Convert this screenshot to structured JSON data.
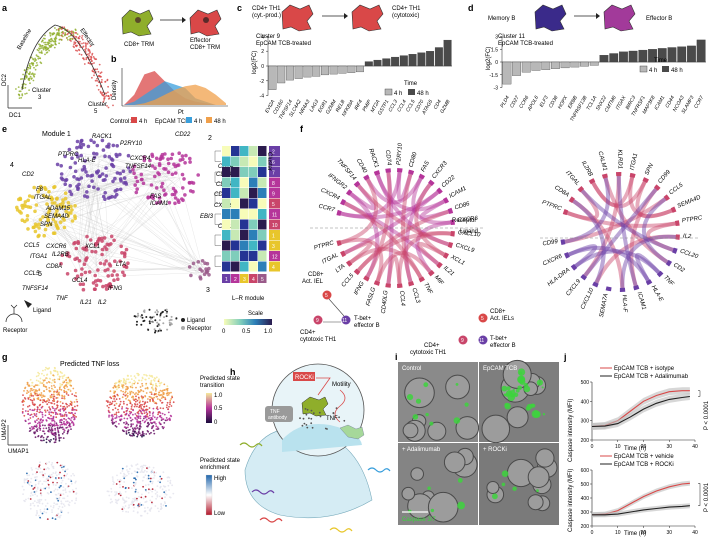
{
  "panel_labels": [
    "a",
    "b",
    "c",
    "d",
    "e",
    "f",
    "g",
    "h",
    "i",
    "j"
  ],
  "colors": {
    "green": "#8fae2b",
    "red": "#d94848",
    "blue": "#3a9fdc",
    "orange": "#f0a04b",
    "gray_light": "#b8b8b8",
    "gray_dark": "#4a4a4a",
    "purple": "#6a3fa6",
    "magenta": "#b5359a",
    "yellow": "#e8c62b",
    "pink": "#c9456a"
  },
  "panel_a": {
    "labels": {
      "baseline": "Baseline",
      "effector": "Effector",
      "cluster3": "Cluster\n3",
      "cluster5": "Cluster\n5",
      "dc1": "DC1",
      "dc2": "DC2"
    },
    "schema": {
      "from": "CD8+ TRM",
      "to": "Effector\nCD8+ TRM"
    }
  },
  "panel_b": {
    "ylabel": "Density",
    "xlabel": "Pt",
    "legend_control": "Control:",
    "legend_treated": "EpCAM TCB:",
    "legend": [
      {
        "label": "4 h",
        "color": "#d94848"
      },
      {
        "label": "4 h",
        "color": "#3a9fdc"
      },
      {
        "label": "48 h",
        "color": "#f0a04b"
      }
    ],
    "chart_data": {
      "type": "area",
      "xlabel": "Pt",
      "ylabel": "Density",
      "series": [
        {
          "name": "Control 4 h",
          "x": [
            0,
            0.1,
            0.2,
            0.3,
            0.4,
            0.5,
            0.6,
            0.7,
            0.8,
            0.9,
            1.0
          ],
          "values": [
            0,
            0.3,
            0.9,
            1.0,
            0.7,
            0.4,
            0.2,
            0.1,
            0.05,
            0,
            0
          ]
        },
        {
          "name": "EpCAM TCB 4 h",
          "x": [
            0,
            0.1,
            0.2,
            0.3,
            0.4,
            0.5,
            0.6,
            0.7,
            0.8,
            0.9,
            1.0
          ],
          "values": [
            0,
            0.1,
            0.3,
            0.5,
            0.7,
            0.6,
            0.5,
            0.2,
            0.1,
            0,
            0
          ]
        },
        {
          "name": "EpCAM TCB 48 h",
          "x": [
            0,
            0.1,
            0.2,
            0.3,
            0.4,
            0.5,
            0.6,
            0.7,
            0.8,
            0.9,
            1.0
          ],
          "values": [
            0,
            0,
            0.05,
            0.15,
            0.3,
            0.45,
            0.55,
            0.6,
            0.5,
            0.3,
            0.05
          ]
        }
      ]
    }
  },
  "panel_c": {
    "schema_from": "CD4+ TH1\n(cyt.-prod.)",
    "schema_to": "CD4+ TH1\n(cytotoxic)",
    "title": "Cluster 9\nEpCAM TCB-treated",
    "ylabel": "log2(FC)",
    "legend_title": "Time",
    "legend": [
      {
        "label": "4 h",
        "color": "#b8b8b8"
      },
      {
        "label": "48 h",
        "color": "#4a4a4a"
      }
    ],
    "chart_data": {
      "type": "bar",
      "title": "Cluster 9 EpCAM TCB-treated",
      "ylabel": "log2(FC)",
      "ylim": [
        -4,
        4
      ],
      "categories": [
        "EVI2A",
        "CD160",
        "TNFSF14",
        "SLC4A2",
        "NR4A3",
        "LAG3",
        "EGR1",
        "GZMM",
        "RELB",
        "NFKBIA",
        "IRF4",
        "PMIP",
        "MT2A",
        "GSTP1",
        "CCL3",
        "CCL4",
        "CCL5",
        "CD70",
        "ATAG5",
        "CD4",
        "GZMB"
      ],
      "values": [
        -3.2,
        -2.3,
        -1.9,
        -1.7,
        -1.5,
        -1.4,
        -1.2,
        -1.1,
        -1.0,
        -0.9,
        -0.8,
        0.6,
        0.8,
        1.0,
        1.2,
        1.4,
        1.6,
        1.8,
        2.0,
        2.5,
        3.5
      ],
      "series_time": [
        "4 h",
        "4 h",
        "4 h",
        "4 h",
        "4 h",
        "4 h",
        "4 h",
        "4 h",
        "4 h",
        "4 h",
        "4 h",
        "48 h",
        "48 h",
        "48 h",
        "48 h",
        "48 h",
        "48 h",
        "48 h",
        "48 h",
        "48 h",
        "48 h"
      ]
    }
  },
  "panel_d": {
    "schema_from": "Memory B",
    "schema_to": "Effector B",
    "title": "Cluster 11\nEpCAM TCB-treated",
    "ylabel": "log2(FC)",
    "legend_title": "Time",
    "legend": [
      {
        "label": "4 h",
        "color": "#b8b8b8"
      },
      {
        "label": "48 h",
        "color": "#4a4a4a"
      }
    ],
    "chart_data": {
      "type": "bar",
      "title": "Cluster 11 EpCAM TCB-treated",
      "ylabel": "log2(FC)",
      "ylim": [
        -3,
        3
      ],
      "categories": [
        "PLD4",
        "CD27",
        "CCR6",
        "APOL6",
        "ELF3",
        "CD38",
        "HOPX",
        "ERBB",
        "TNFRSF13B",
        "TCL1A",
        "SNX22",
        "CMTM6",
        "ITGAX",
        "BIRC3",
        "TNFRSF1",
        "MAP3K8",
        "ICAM1",
        "CD44",
        "NCOA3",
        "SLAMF3",
        "CCR7"
      ],
      "values": [
        -2.6,
        -1.6,
        -1.2,
        -1.0,
        -0.9,
        -0.8,
        -0.7,
        -0.6,
        -0.5,
        -0.4,
        0.8,
        1.0,
        1.2,
        1.3,
        1.4,
        1.5,
        1.6,
        1.7,
        1.8,
        1.9,
        2.6
      ],
      "series_time": [
        "4 h",
        "4 h",
        "4 h",
        "4 h",
        "4 h",
        "4 h",
        "4 h",
        "4 h",
        "4 h",
        "4 h",
        "48 h",
        "48 h",
        "48 h",
        "48 h",
        "48 h",
        "48 h",
        "48 h",
        "48 h",
        "48 h",
        "48 h",
        "48 h"
      ]
    }
  },
  "panel_e": {
    "module_label": "Module 1",
    "module_numbers": [
      "2",
      "3",
      "4",
      "5"
    ],
    "genes_top": [
      "RACK1",
      "P2RY10",
      "CD22",
      "CXCR4",
      "TNFSF14",
      "CD74",
      "CD40",
      "CD86",
      "CD80",
      "CXCL9",
      "EBI3",
      "CCL17",
      "ICAM1",
      "FAS",
      "CCL5"
    ],
    "genes_left": [
      "PTPRC",
      "HLA-E",
      "F8",
      "ITGAL",
      "ADAM15",
      "SEMA4D",
      "SPN",
      "CD2"
    ],
    "genes_bottom": [
      "CCL5",
      "ITGA1",
      "CXCR6",
      "IL2RB",
      "XCL1",
      "CD8A",
      "LTA",
      "CCL4",
      "TNFSF14",
      "TNF",
      "IL21",
      "IL2",
      "IFNG"
    ],
    "legend_ligand": "Ligand",
    "legend_receptor": "Receptor",
    "receptor_label": "Receptor",
    "ligand_label": "Ligand",
    "heatmap_title": "Cluster",
    "heatmap_clusters": [
      "2",
      "6",
      "7",
      "8",
      "9",
      "5",
      "11",
      "10",
      "1",
      "3",
      "12",
      "4"
    ],
    "heatmap_xlabel": "L–R module",
    "heatmap_modules": [
      "1",
      "2",
      "3",
      "4",
      "5"
    ],
    "scale_label": "Scale",
    "scale_ticks": [
      "0",
      "0.5",
      "1.0"
    ]
  },
  "panel_f": {
    "left_genes": [
      "CCR7",
      "CXCR4",
      "IFNGR2",
      "TNFSF14",
      "CD40",
      "RACK1",
      "CD74",
      "P2RY10",
      "CD80",
      "FAS",
      "CXCR3",
      "CD22",
      "ICAM1",
      "CD86",
      "CXCR6",
      "CXCL10",
      "CXCL9",
      "XCL1",
      "IL21",
      "MIF",
      "TNF",
      "CCL3",
      "CCL4",
      "CD40LG",
      "FASLG",
      "IFNG",
      "CCL5",
      "LTA",
      "ITGAL",
      "PTPRC"
    ],
    "right_genes": [
      "PTPRC",
      "CD8A",
      "ITGAL",
      "IL2RB",
      "CALM1",
      "KLRD1",
      "ITGA1",
      "SPN",
      "CD99",
      "CCL5",
      "SEMA4D",
      "PTPRC",
      "IL2",
      "CCL20",
      "CD2",
      "TNF",
      "HLA-E",
      "ICAM1",
      "HLA-F",
      "SEMA7A",
      "CXCL10",
      "CXCL9",
      "HLA-DRA",
      "CXCR6",
      "CD99"
    ],
    "left_labels": {
      "receptor": "Receptor",
      "ligand": "Ligand"
    },
    "left_node_labels": [
      "CD8+\nAct. IEL",
      "CD4+\ncytotoxic TH1",
      "T-bet+\neffector B"
    ],
    "right_node_labels": [
      "CD8+\nAct. IELs",
      "CD4+\ncytotoxic TH1",
      "T-bet+\neffector B"
    ],
    "node_numbers": [
      "5",
      "9",
      "11"
    ]
  },
  "panel_g": {
    "title": "Predicted TNF loss",
    "colorbar_title": "Predicted state\ntransition",
    "colorbar_ticks": [
      "1.0",
      "0.5",
      "0"
    ],
    "umap1": "UMAP1",
    "umap2": "UMAP2",
    "enrich_title": "Predicted state\nenrichment",
    "enrich_high": "High",
    "enrich_low": "Low"
  },
  "panel_h": {
    "rocki": "ROCKi",
    "motility": "Motility",
    "tnf_antibody": "TNF\nantibody",
    "tnf": "TNF"
  },
  "panel_i": {
    "tiles": [
      "Control",
      "EpCAM TCB",
      "+ Adalimumab",
      "+ ROCKi"
    ],
    "stain": "Caspase 3/7"
  },
  "panel_j": {
    "charts": [
      {
        "legend": [
          {
            "label": "EpCAM TCB + isotype",
            "color": "#d94848"
          },
          {
            "label": "EpCAM TCB + Adalimumab",
            "color": "#222222"
          }
        ],
        "pvalue": "P < 0.0001",
        "chart_data": {
          "type": "line",
          "xlabel": "Time (h)",
          "ylabel": "Caspase intensity (MFI)",
          "xlim": [
            0,
            40
          ],
          "ylim": [
            200,
            500
          ],
          "x": [
            0,
            5,
            10,
            15,
            20,
            25,
            30,
            35,
            38
          ],
          "series": [
            {
              "name": "EpCAM TCB + isotype",
              "values": [
                270,
                275,
                300,
                350,
                400,
                430,
                450,
                455,
                455
              ]
            },
            {
              "name": "EpCAM TCB + Adalimumab",
              "values": [
                270,
                272,
                285,
                320,
                360,
                390,
                410,
                420,
                425
              ]
            }
          ],
          "xticks": [
            "0",
            "10",
            "20",
            "30",
            "40"
          ],
          "yticks": [
            "200",
            "300",
            "400",
            "500"
          ]
        }
      },
      {
        "legend": [
          {
            "label": "EpCAM TCB + vehicle",
            "color": "#d94848"
          },
          {
            "label": "EpCAM TCB + ROCKi",
            "color": "#222222"
          }
        ],
        "pvalue": "P < 0.0001",
        "chart_data": {
          "type": "line",
          "xlabel": "Time (h)",
          "ylabel": "Caspase intensity (MFI)",
          "xlim": [
            0,
            40
          ],
          "ylim": [
            200,
            600
          ],
          "x": [
            0,
            5,
            10,
            15,
            20,
            25,
            30,
            35,
            38
          ],
          "series": [
            {
              "name": "EpCAM TCB + vehicle",
              "values": [
                280,
                285,
                310,
                360,
                410,
                450,
                480,
                500,
                505
              ]
            },
            {
              "name": "EpCAM TCB + ROCKi",
              "values": [
                280,
                280,
                285,
                300,
                315,
                325,
                335,
                340,
                345
              ]
            }
          ],
          "xticks": [
            "0",
            "10",
            "20",
            "30",
            "40"
          ],
          "yticks": [
            "200",
            "300",
            "400",
            "500",
            "600"
          ]
        }
      }
    ]
  }
}
